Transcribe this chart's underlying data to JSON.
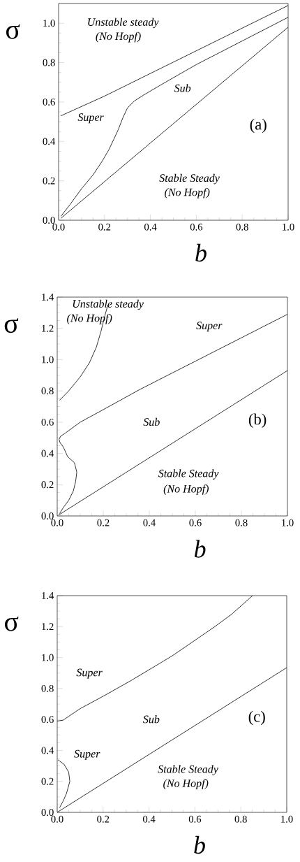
{
  "chart_data": [
    {
      "type": "line",
      "title": "(a)",
      "xlabel": "b",
      "ylabel": "σ",
      "xlim": [
        0,
        1.0
      ],
      "ylim": [
        0,
        1.1
      ],
      "xticks": [
        {
          "value": 0,
          "label": "0.0"
        },
        {
          "value": 0.2,
          "label": "0.2"
        },
        {
          "value": 0.4,
          "label": "0.4"
        },
        {
          "value": 0.6,
          "label": "0.6"
        },
        {
          "value": 0.8,
          "label": "0.8"
        },
        {
          "value": 1.0,
          "label": "1.0"
        }
      ],
      "yticks": [
        {
          "value": 0,
          "label": "0.0"
        },
        {
          "value": 0.2,
          "label": "0.2"
        },
        {
          "value": 0.4,
          "label": "0.4"
        },
        {
          "value": 0.6,
          "label": "0.6"
        },
        {
          "value": 0.8,
          "label": "0.8"
        },
        {
          "value": 1.0,
          "label": "1.0"
        }
      ],
      "series": [
        {
          "color": "#000000",
          "x": [
            0.01,
            0.2,
            1.0
          ],
          "values": [
            0.53,
            0.63,
            1.09
          ]
        },
        {
          "color": "#000000",
          "x": [
            0.01,
            0.05,
            0.1,
            0.15,
            0.19,
            0.22,
            0.24,
            0.26,
            0.28,
            0.3,
            0.33,
            0.37,
            0.45,
            0.6,
            0.8,
            1.0
          ],
          "values": [
            0.02,
            0.08,
            0.16,
            0.23,
            0.3,
            0.36,
            0.41,
            0.46,
            0.52,
            0.57,
            0.605,
            0.635,
            0.69,
            0.79,
            0.91,
            1.03
          ]
        },
        {
          "color": "#000000",
          "x": [
            0.01,
            1.0
          ],
          "values": [
            0.01,
            0.98
          ]
        }
      ],
      "annotations": [
        "Unstable steady",
        "(No Hopf)",
        "Super",
        "Sub",
        "Stable Steady",
        "(No Hopf)"
      ]
    },
    {
      "type": "line",
      "title": "(b)",
      "xlabel": "b",
      "ylabel": "σ",
      "xlim": [
        0,
        1.0
      ],
      "ylim": [
        0,
        1.4
      ],
      "xticks": [
        {
          "value": 0,
          "label": "0.0"
        },
        {
          "value": 0.2,
          "label": "0.2"
        },
        {
          "value": 0.4,
          "label": "0.4"
        },
        {
          "value": 0.6,
          "label": "0.6"
        },
        {
          "value": 0.8,
          "label": "0.8"
        },
        {
          "value": 1.0,
          "label": "1.0"
        }
      ],
      "yticks": [
        {
          "value": 0,
          "label": "0.0"
        },
        {
          "value": 0.2,
          "label": "0.2"
        },
        {
          "value": 0.4,
          "label": "0.4"
        },
        {
          "value": 0.6,
          "label": "0.6"
        },
        {
          "value": 0.8,
          "label": "0.8"
        },
        {
          "value": 1.0,
          "label": "1.0"
        },
        {
          "value": 1.2,
          "label": "1.2"
        },
        {
          "value": 1.4,
          "label": "1.4"
        }
      ],
      "series": [
        {
          "color": "#000000",
          "x": [
            0.01,
            0.05,
            0.1,
            0.14,
            0.17,
            0.19,
            0.205,
            0.22
          ],
          "values": [
            0.74,
            0.8,
            0.89,
            0.98,
            1.08,
            1.18,
            1.27,
            1.35
          ]
        },
        {
          "color": "#000000",
          "x": [
            0.01,
            0.025,
            0.05,
            0.07,
            0.08,
            0.085,
            0.075,
            0.045,
            0.027,
            0.012,
            0.008,
            0.015,
            0.035,
            0.1,
            0.2,
            0.36,
            0.6,
            0.8,
            1.0
          ],
          "values": [
            0.015,
            0.05,
            0.1,
            0.16,
            0.22,
            0.28,
            0.34,
            0.38,
            0.44,
            0.47,
            0.49,
            0.51,
            0.53,
            0.6,
            0.68,
            0.81,
            0.99,
            1.14,
            1.29
          ]
        },
        {
          "color": "#000000",
          "x": [
            0.005,
            1.0
          ],
          "values": [
            0.005,
            0.93
          ]
        }
      ],
      "annotations": [
        "Unstable steady",
        "(No Hopf)",
        "Super",
        "Sub",
        "Stable Steady",
        "(No Hopf)"
      ]
    },
    {
      "type": "line",
      "title": "(c)",
      "xlabel": "b",
      "ylabel": "σ",
      "xlim": [
        0,
        1.0
      ],
      "ylim": [
        0,
        1.4
      ],
      "xticks": [
        {
          "value": 0,
          "label": "0.0"
        },
        {
          "value": 0.2,
          "label": "0.2"
        },
        {
          "value": 0.4,
          "label": "0.4"
        },
        {
          "value": 0.6,
          "label": "0.6"
        },
        {
          "value": 0.8,
          "label": "0.8"
        },
        {
          "value": 1.0,
          "label": "1.0"
        }
      ],
      "yticks": [
        {
          "value": 0,
          "label": "0.0"
        },
        {
          "value": 0.2,
          "label": "0.2"
        },
        {
          "value": 0.4,
          "label": "0.4"
        },
        {
          "value": 0.6,
          "label": "0.6"
        },
        {
          "value": 0.8,
          "label": "0.8"
        },
        {
          "value": 1.0,
          "label": "1.0"
        },
        {
          "value": 1.2,
          "label": "1.2"
        },
        {
          "value": 1.4,
          "label": "1.4"
        }
      ],
      "series": [
        {
          "color": "#000000",
          "x": [
            0.0,
            0.025,
            0.05,
            0.1,
            0.2,
            0.32,
            0.5,
            0.684,
            0.76,
            0.851
          ],
          "values": [
            0.59,
            0.595,
            0.62,
            0.67,
            0.75,
            0.85,
            1.01,
            1.197,
            1.28,
            1.4
          ]
        },
        {
          "color": "#000000",
          "x": [
            0.01,
            0.025,
            0.04,
            0.055,
            0.05,
            0.03,
            0.003
          ],
          "values": [
            0.03,
            0.07,
            0.12,
            0.2,
            0.26,
            0.31,
            0.34
          ]
        },
        {
          "color": "#000000",
          "x": [
            0.0,
            1.0
          ],
          "values": [
            0.0,
            0.935
          ]
        }
      ],
      "annotations": [
        "Super",
        "Sub",
        "Super",
        "Stable Steady",
        "(No Hopf)"
      ]
    }
  ]
}
